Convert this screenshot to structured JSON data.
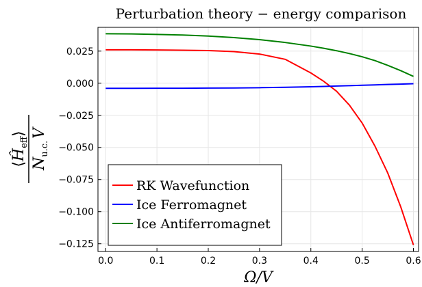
{
  "chart_data": {
    "type": "line",
    "title": "Perturbation theory  −  energy comparison",
    "xlabel": "Ω/V",
    "ylabel_parts": {
      "open": "⟨",
      "op": "Ĥ",
      "sub": "eff",
      "close": "⟩",
      "den": "N",
      "den_sub": "u.c.",
      "den_tail": "V"
    },
    "xlim": [
      -0.015,
      0.61
    ],
    "ylim": [
      -0.131,
      0.0435
    ],
    "x_ticks": [
      0.0,
      0.1,
      0.2,
      0.3,
      0.4,
      0.5,
      0.6
    ],
    "x_tick_labels": [
      "0.0",
      "0.1",
      "0.2",
      "0.3",
      "0.4",
      "0.5",
      "0.6"
    ],
    "y_ticks": [
      0.025,
      0.0,
      -0.025,
      -0.05,
      -0.075,
      -0.1,
      -0.125
    ],
    "y_tick_labels": [
      "0.025",
      "0.000",
      "−0.025",
      "−0.050",
      "−0.075",
      "−0.100",
      "−0.125"
    ],
    "grid": true,
    "legend_position": "bottom-left",
    "x": [
      0.0,
      0.05,
      0.1,
      0.15,
      0.2,
      0.25,
      0.3,
      0.35,
      0.4,
      0.425,
      0.45,
      0.475,
      0.5,
      0.525,
      0.55,
      0.575,
      0.6
    ],
    "series": [
      {
        "name": "RK Wavefunction",
        "color": "#ff0000",
        "values": [
          0.026,
          0.026,
          0.0259,
          0.0257,
          0.0254,
          0.0246,
          0.0227,
          0.0186,
          0.008,
          0.0015,
          -0.0062,
          -0.017,
          -0.031,
          -0.049,
          -0.07,
          -0.096,
          -0.126
        ]
      },
      {
        "name": "Ice Ferromagnet",
        "color": "#0000ff",
        "values": [
          -0.004,
          -0.004,
          -0.0039,
          -0.0039,
          -0.0038,
          -0.0037,
          -0.0035,
          -0.0032,
          -0.0028,
          -0.0025,
          -0.0022,
          -0.0019,
          -0.0016,
          -0.0013,
          -0.001,
          -0.0007,
          -0.0004
        ]
      },
      {
        "name": "Ice Antiferromagnet",
        "color": "#008000",
        "values": [
          0.0385,
          0.0384,
          0.038,
          0.0375,
          0.0367,
          0.0355,
          0.0339,
          0.0317,
          0.0289,
          0.0272,
          0.0253,
          0.0231,
          0.0206,
          0.0176,
          0.0139,
          0.0098,
          0.0053
        ]
      }
    ]
  }
}
